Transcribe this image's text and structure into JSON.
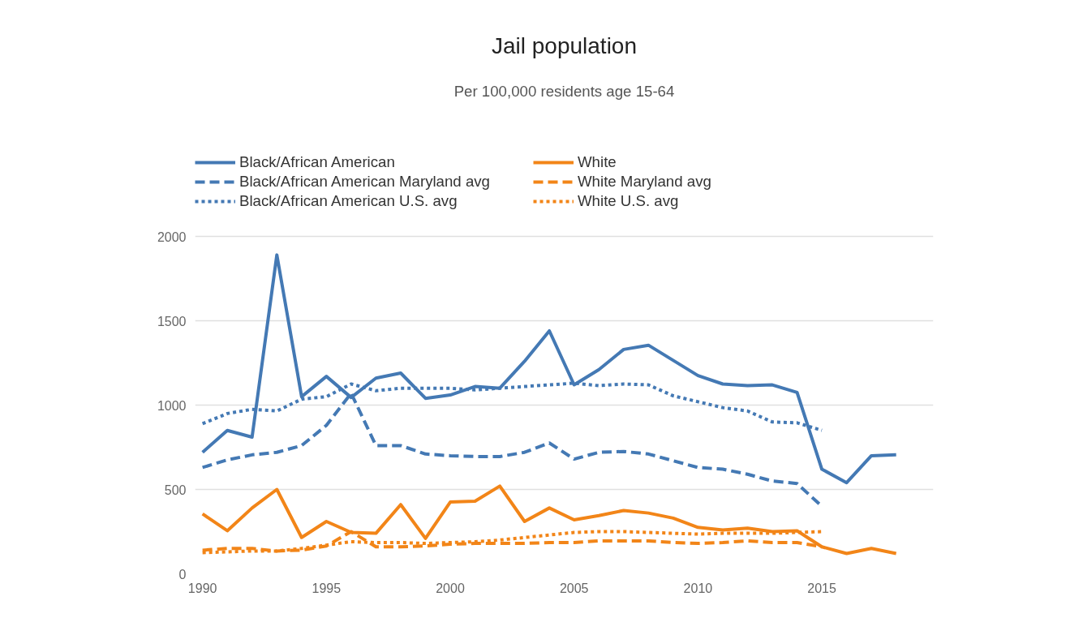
{
  "chart_data": {
    "type": "line",
    "title": "Jail population",
    "subtitle": "Per 100,000 residents age 15-64",
    "x": [
      1990,
      1991,
      1992,
      1993,
      1994,
      1995,
      1996,
      1997,
      1998,
      1999,
      2000,
      2001,
      2002,
      2003,
      2004,
      2005,
      2006,
      2007,
      2008,
      2009,
      2010,
      2011,
      2012,
      2013,
      2014,
      2015,
      2016,
      2017,
      2018
    ],
    "xlim": [
      1989.7,
      2019.5
    ],
    "xticks": [
      1990,
      1995,
      2000,
      2005,
      2010,
      2015
    ],
    "ylim": [
      0,
      2000
    ],
    "yticks": [
      0,
      500,
      1000,
      1500,
      2000
    ],
    "grid": "y",
    "legend": "top",
    "series": [
      {
        "name": "Black/African American",
        "color": "#4479b4",
        "line_style": "solid",
        "values": [
          720,
          850,
          810,
          1890,
          1050,
          1170,
          1045,
          1160,
          1190,
          1040,
          1060,
          1110,
          1100,
          1260,
          1440,
          1120,
          1210,
          1330,
          1355,
          1265,
          1175,
          1125,
          1115,
          1120,
          1075,
          620,
          540,
          700,
          705
        ]
      },
      {
        "name": "Black/African American Maryland avg",
        "color": "#4479b4",
        "line_style": "dashed",
        "values": [
          630,
          675,
          705,
          720,
          760,
          880,
          1070,
          760,
          760,
          710,
          700,
          695,
          695,
          720,
          775,
          680,
          720,
          725,
          710,
          670,
          630,
          620,
          590,
          550,
          535,
          400,
          null,
          null,
          null
        ]
      },
      {
        "name": "Black/African American U.S. avg",
        "color": "#4479b4",
        "line_style": "dotted",
        "values": [
          890,
          950,
          975,
          965,
          1035,
          1050,
          1125,
          1085,
          1100,
          1100,
          1100,
          1090,
          1100,
          1110,
          1120,
          1130,
          1115,
          1125,
          1120,
          1055,
          1020,
          985,
          965,
          900,
          895,
          850,
          null,
          null,
          null
        ]
      },
      {
        "name": "White",
        "color": "#f28518",
        "line_style": "solid",
        "values": [
          355,
          255,
          390,
          500,
          215,
          310,
          245,
          240,
          410,
          210,
          425,
          430,
          520,
          310,
          390,
          320,
          345,
          375,
          360,
          330,
          275,
          260,
          270,
          250,
          255,
          160,
          120,
          150,
          120
        ]
      },
      {
        "name": "White Maryland avg",
        "color": "#f28518",
        "line_style": "dashed",
        "values": [
          140,
          150,
          150,
          135,
          140,
          165,
          250,
          160,
          160,
          165,
          175,
          180,
          180,
          180,
          185,
          185,
          195,
          195,
          195,
          185,
          180,
          185,
          195,
          185,
          185,
          160,
          null,
          null,
          null
        ]
      },
      {
        "name": "White U.S. avg",
        "color": "#f28518",
        "line_style": "dotted",
        "values": [
          125,
          130,
          135,
          135,
          150,
          170,
          190,
          185,
          185,
          180,
          185,
          190,
          200,
          215,
          230,
          245,
          250,
          250,
          245,
          240,
          235,
          240,
          240,
          240,
          245,
          250,
          null,
          null,
          null
        ]
      }
    ]
  }
}
